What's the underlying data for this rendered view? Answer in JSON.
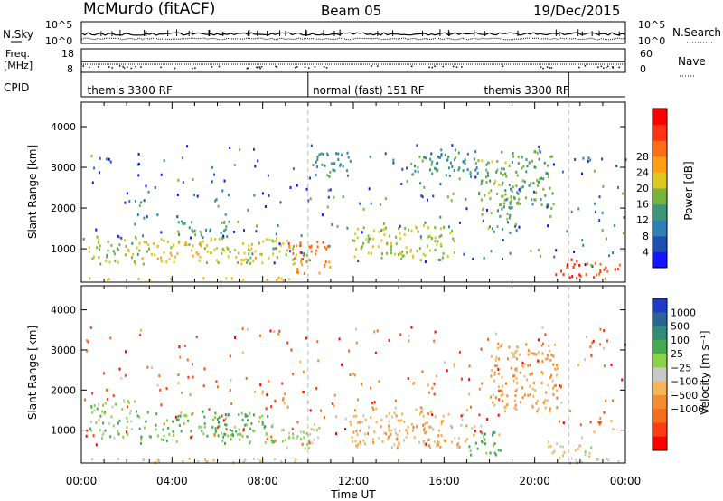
{
  "header": {
    "station": "McMurdo (fitACF)",
    "beam": "Beam 05",
    "date": "19/Dec/2015"
  },
  "noise_panel": {
    "left_label": "N.Sky",
    "right_label": "N.Search",
    "left_ticks": [
      "10^5",
      "10^0"
    ],
    "right_ticks": [
      "10^5",
      "10^0"
    ]
  },
  "freq_panel": {
    "left_label_1": "Freq.",
    "left_label_2": "[MHz]",
    "left_ticks": [
      "18",
      "8"
    ],
    "right_label": "Nave",
    "right_ticks": [
      "60",
      "0"
    ]
  },
  "cpid_panel": {
    "label": "CPID",
    "segments": [
      {
        "name": "themis 3300 RF",
        "start_h": 0,
        "end_h": 10
      },
      {
        "name": "normal (fast) 151 RF",
        "start_h": 10,
        "end_h": 21.5
      },
      {
        "name": "themis 3300 RF",
        "start_h": 21.5,
        "end_h": 24
      }
    ],
    "segment_label_positions_h": [
      0.1,
      10.05,
      17.6
    ]
  },
  "axes": {
    "ylabel": "Slant Range [km]",
    "xlabel": "Time UT",
    "yticks": [
      "1000",
      "2000",
      "3000",
      "4000"
    ],
    "xticks": [
      "00:00",
      "04:00",
      "08:00",
      "12:00",
      "16:00",
      "20:00",
      "00:00"
    ]
  },
  "power_colorbar": {
    "title": "Power [dB]",
    "ticks": [
      "4",
      "8",
      "12",
      "16",
      "20",
      "24",
      "28"
    ],
    "colors": [
      "#1414ff",
      "#1e50b4",
      "#2d7fb4",
      "#3c9678",
      "#78b43c",
      "#dcc81e",
      "#ffa014",
      "#ff6e14",
      "#ff3214",
      "#ff0000"
    ]
  },
  "velocity_colorbar": {
    "title": "Velocity [m s⁻¹]",
    "ticks": [
      "1000",
      "500",
      "100",
      "25",
      "−25",
      "−100",
      "−500",
      "−1000"
    ],
    "colors": [
      "#1e3cc8",
      "#286496",
      "#328c78",
      "#46aa50",
      "#8cd246",
      "#c8c8c8",
      "#f5b45a",
      "#f58c32",
      "#f56e1e",
      "#ff3c14",
      "#ff0000"
    ]
  },
  "chart_data": {
    "type": "heatmap",
    "title": "McMurdo (fitACF)   Beam 05   19/Dec/2015",
    "xlabel": "Time UT",
    "ylabel": "Slant Range [km]",
    "xlim": [
      0,
      24
    ],
    "ylim": [
      180,
      4600
    ],
    "panels": [
      {
        "name": "Power [dB]",
        "clim": [
          0,
          30
        ],
        "blobs": [
          {
            "t0": 0.3,
            "t1": 9.6,
            "r0": 250,
            "r1": 320,
            "val": 18
          },
          {
            "t0": 0.3,
            "t1": 2.5,
            "r0": 650,
            "r1": 1350,
            "val": 14
          },
          {
            "t0": 2.5,
            "t1": 5.5,
            "r0": 700,
            "r1": 1300,
            "val": 17
          },
          {
            "t0": 5.5,
            "t1": 9.5,
            "r0": 650,
            "r1": 1300,
            "val": 16
          },
          {
            "t0": 4.2,
            "t1": 6.5,
            "r0": 1300,
            "r1": 1700,
            "val": 10
          },
          {
            "t0": 9.0,
            "t1": 11.0,
            "r0": 400,
            "r1": 1200,
            "val": 22
          },
          {
            "t0": 10.2,
            "t1": 12.0,
            "r0": 2800,
            "r1": 3400,
            "val": 10
          },
          {
            "t0": 12.0,
            "t1": 16.5,
            "r0": 800,
            "r1": 1600,
            "val": 15
          },
          {
            "t0": 14.5,
            "t1": 17.5,
            "r0": 2800,
            "r1": 3500,
            "val": 10
          },
          {
            "t0": 17.5,
            "t1": 19.0,
            "r0": 1500,
            "r1": 3200,
            "val": 13
          },
          {
            "t0": 18.8,
            "t1": 20.8,
            "r0": 2000,
            "r1": 3500,
            "val": 12
          },
          {
            "t0": 20.8,
            "t1": 22.0,
            "r0": 280,
            "r1": 800,
            "val": 26
          },
          {
            "t0": 22.2,
            "t1": 23.8,
            "r0": 280,
            "r1": 700,
            "val": 24
          }
        ]
      },
      {
        "name": "Velocity [m s-1]",
        "clim": [
          -1000,
          1000
        ],
        "blobs": [
          {
            "t0": 0.3,
            "t1": 9.6,
            "r0": 220,
            "r1": 320,
            "val": -120
          },
          {
            "t0": 0.3,
            "t1": 2.4,
            "r0": 800,
            "r1": 1800,
            "val": 150
          },
          {
            "t0": 2.4,
            "t1": 8.5,
            "r0": 700,
            "r1": 1500,
            "val": 300
          },
          {
            "t0": 8.5,
            "t1": 10.5,
            "r0": 500,
            "r1": 1100,
            "val": 80
          },
          {
            "t0": 11.5,
            "t1": 17.0,
            "r0": 600,
            "r1": 1600,
            "val": -200
          },
          {
            "t0": 17.0,
            "t1": 18.5,
            "r0": 400,
            "r1": 1000,
            "val": 300
          },
          {
            "t0": 18.0,
            "t1": 21.0,
            "r0": 1500,
            "r1": 3200,
            "val": -250
          },
          {
            "t0": 20.5,
            "t1": 22.5,
            "r0": 300,
            "r1": 700,
            "val": -50
          },
          {
            "t0": 21.0,
            "t1": 24.0,
            "r0": 200,
            "r1": 320,
            "val": 0
          }
        ]
      }
    ]
  }
}
